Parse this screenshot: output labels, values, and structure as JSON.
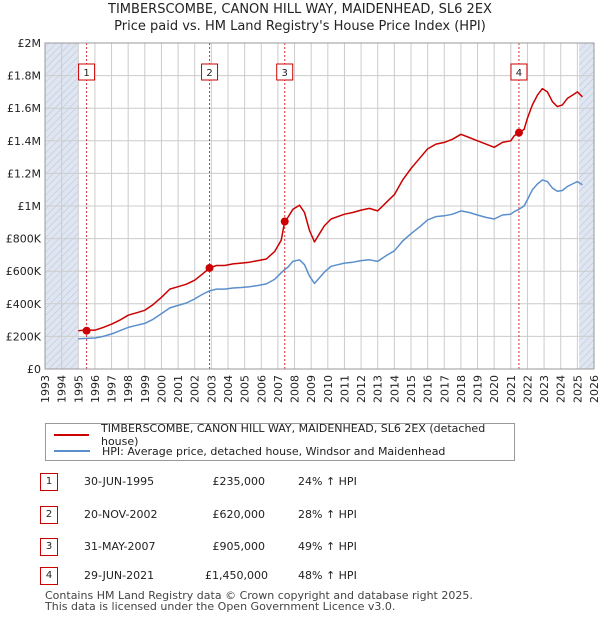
{
  "title_line1": "TIMBERSCOMBE, CANON HILL WAY, MAIDENHEAD, SL6 2EX",
  "title_line2": "Price paid vs. HM Land Registry's House Price Index (HPI)",
  "colors": {
    "property": "#cc0000",
    "hpi": "#5b8fcc",
    "shade": "#dfe6f2",
    "grid": "#cccccc"
  },
  "chart_data": {
    "type": "line",
    "title": "TIMBERSCOMBE, CANON HILL WAY, MAIDENHEAD, SL6 2EX — Price paid vs. HM Land Registry's House Price Index (HPI)",
    "xlim": [
      1993,
      2026
    ],
    "ylim": [
      0,
      2000000
    ],
    "x_ticks": [
      "1993",
      "1994",
      "1995",
      "1996",
      "1997",
      "1998",
      "1999",
      "2000",
      "2001",
      "2002",
      "2003",
      "2004",
      "2005",
      "2006",
      "2007",
      "2008",
      "2009",
      "2010",
      "2011",
      "2012",
      "2013",
      "2014",
      "2015",
      "2016",
      "2017",
      "2018",
      "2019",
      "2020",
      "2021",
      "2022",
      "2023",
      "2024",
      "2025",
      "2026"
    ],
    "y_ticks": [
      {
        "value": 0,
        "label": "£0"
      },
      {
        "value": 200000,
        "label": "£200K"
      },
      {
        "value": 400000,
        "label": "£400K"
      },
      {
        "value": 600000,
        "label": "£600K"
      },
      {
        "value": 800000,
        "label": "£800K"
      },
      {
        "value": 1000000,
        "label": "£1M"
      },
      {
        "value": 1200000,
        "label": "£1.2M"
      },
      {
        "value": 1400000,
        "label": "£1.4M"
      },
      {
        "value": 1600000,
        "label": "£1.6M"
      },
      {
        "value": 1800000,
        "label": "£1.8M"
      },
      {
        "value": 2000000,
        "label": "£2M"
      }
    ],
    "shaded_ranges": [
      [
        1993,
        1995.0
      ],
      [
        2025.1,
        2026
      ]
    ],
    "series": [
      {
        "name": "TIMBERSCOMBE, CANON HILL WAY, MAIDENHEAD, SL6 2EX (detached house)",
        "color": "#cc0000",
        "x": [
          1995.0,
          1995.5,
          1996.0,
          1996.5,
          1997.0,
          1997.5,
          1998.0,
          1998.5,
          1999.0,
          1999.5,
          2000.0,
          2000.5,
          2001.0,
          2001.5,
          2002.0,
          2002.5,
          2002.9,
          2003.3,
          2003.8,
          2004.3,
          2004.8,
          2005.3,
          2005.8,
          2006.3,
          2006.8,
          2007.2,
          2007.41,
          2007.6,
          2007.9,
          2008.3,
          2008.6,
          2008.9,
          2009.2,
          2009.5,
          2009.8,
          2010.2,
          2010.6,
          2011.0,
          2011.5,
          2012.0,
          2012.5,
          2013.0,
          2013.5,
          2014.0,
          2014.5,
          2015.0,
          2015.5,
          2016.0,
          2016.5,
          2017.0,
          2017.5,
          2018.0,
          2018.5,
          2019.0,
          2019.5,
          2020.0,
          2020.5,
          2021.0,
          2021.2,
          2021.49,
          2021.8,
          2022.0,
          2022.3,
          2022.6,
          2022.9,
          2023.2,
          2023.5,
          2023.8,
          2024.1,
          2024.4,
          2024.7,
          2025.0,
          2025.3
        ],
        "values": [
          235000,
          240000,
          238000,
          255000,
          275000,
          300000,
          330000,
          345000,
          360000,
          395000,
          440000,
          490000,
          505000,
          520000,
          545000,
          585000,
          620000,
          635000,
          635000,
          645000,
          650000,
          655000,
          665000,
          675000,
          720000,
          790000,
          905000,
          930000,
          980000,
          1005000,
          960000,
          850000,
          780000,
          830000,
          880000,
          920000,
          935000,
          950000,
          960000,
          975000,
          985000,
          970000,
          1020000,
          1070000,
          1160000,
          1230000,
          1290000,
          1350000,
          1380000,
          1390000,
          1410000,
          1440000,
          1420000,
          1400000,
          1380000,
          1360000,
          1390000,
          1400000,
          1430000,
          1450000,
          1470000,
          1540000,
          1620000,
          1680000,
          1720000,
          1700000,
          1640000,
          1610000,
          1620000,
          1660000,
          1680000,
          1700000,
          1670000
        ]
      },
      {
        "name": "HPI: Average price, detached house, Windsor and Maidenhead",
        "color": "#5b8fcc",
        "x": [
          1995.0,
          1995.5,
          1996.0,
          1996.5,
          1997.0,
          1997.5,
          1998.0,
          1998.5,
          1999.0,
          1999.5,
          2000.0,
          2000.5,
          2001.0,
          2001.5,
          2002.0,
          2002.5,
          2002.9,
          2003.3,
          2003.8,
          2004.3,
          2004.8,
          2005.3,
          2005.8,
          2006.3,
          2006.8,
          2007.2,
          2007.41,
          2007.6,
          2007.9,
          2008.3,
          2008.6,
          2008.9,
          2009.2,
          2009.5,
          2009.8,
          2010.2,
          2010.6,
          2011.0,
          2011.5,
          2012.0,
          2012.5,
          2013.0,
          2013.5,
          2014.0,
          2014.5,
          2015.0,
          2015.5,
          2016.0,
          2016.5,
          2017.0,
          2017.5,
          2018.0,
          2018.5,
          2019.0,
          2019.5,
          2020.0,
          2020.5,
          2021.0,
          2021.2,
          2021.49,
          2021.8,
          2022.0,
          2022.3,
          2022.6,
          2022.9,
          2023.2,
          2023.5,
          2023.8,
          2024.1,
          2024.4,
          2024.7,
          2025.0,
          2025.3
        ],
        "values": [
          185000,
          188000,
          190000,
          200000,
          215000,
          235000,
          255000,
          268000,
          280000,
          305000,
          340000,
          375000,
          390000,
          405000,
          430000,
          460000,
          480000,
          490000,
          490000,
          497000,
          500000,
          505000,
          512000,
          522000,
          550000,
          590000,
          610000,
          625000,
          660000,
          670000,
          640000,
          570000,
          525000,
          560000,
          595000,
          630000,
          640000,
          650000,
          655000,
          665000,
          670000,
          660000,
          695000,
          725000,
          785000,
          830000,
          870000,
          915000,
          935000,
          940000,
          950000,
          970000,
          960000,
          945000,
          930000,
          920000,
          945000,
          950000,
          965000,
          980000,
          1000000,
          1040000,
          1100000,
          1135000,
          1160000,
          1150000,
          1110000,
          1090000,
          1095000,
          1120000,
          1135000,
          1150000,
          1130000
        ]
      }
    ],
    "sale_markers": [
      {
        "num": "1",
        "x": 1995.5,
        "value": 235000
      },
      {
        "num": "2",
        "x": 2002.89,
        "value": 620000
      },
      {
        "num": "3",
        "x": 2007.41,
        "value": 905000
      },
      {
        "num": "4",
        "x": 2021.49,
        "value": 1450000
      }
    ]
  },
  "legend": {
    "property": "TIMBERSCOMBE, CANON HILL WAY, MAIDENHEAD, SL6 2EX (detached house)",
    "hpi": "HPI: Average price, detached house, Windsor and Maidenhead"
  },
  "sales": [
    {
      "num": "1",
      "date": "30-JUN-1995",
      "price": "£235,000",
      "hpi": "24% ↑ HPI"
    },
    {
      "num": "2",
      "date": "20-NOV-2002",
      "price": "£620,000",
      "hpi": "28% ↑ HPI"
    },
    {
      "num": "3",
      "date": "31-MAY-2007",
      "price": "£905,000",
      "hpi": "49% ↑ HPI"
    },
    {
      "num": "4",
      "date": "29-JUN-2021",
      "price": "£1,450,000",
      "hpi": "48% ↑ HPI"
    }
  ],
  "footer_line1": "Contains HM Land Registry data © Crown copyright and database right 2025.",
  "footer_line2": "This data is licensed under the Open Government Licence v3.0."
}
